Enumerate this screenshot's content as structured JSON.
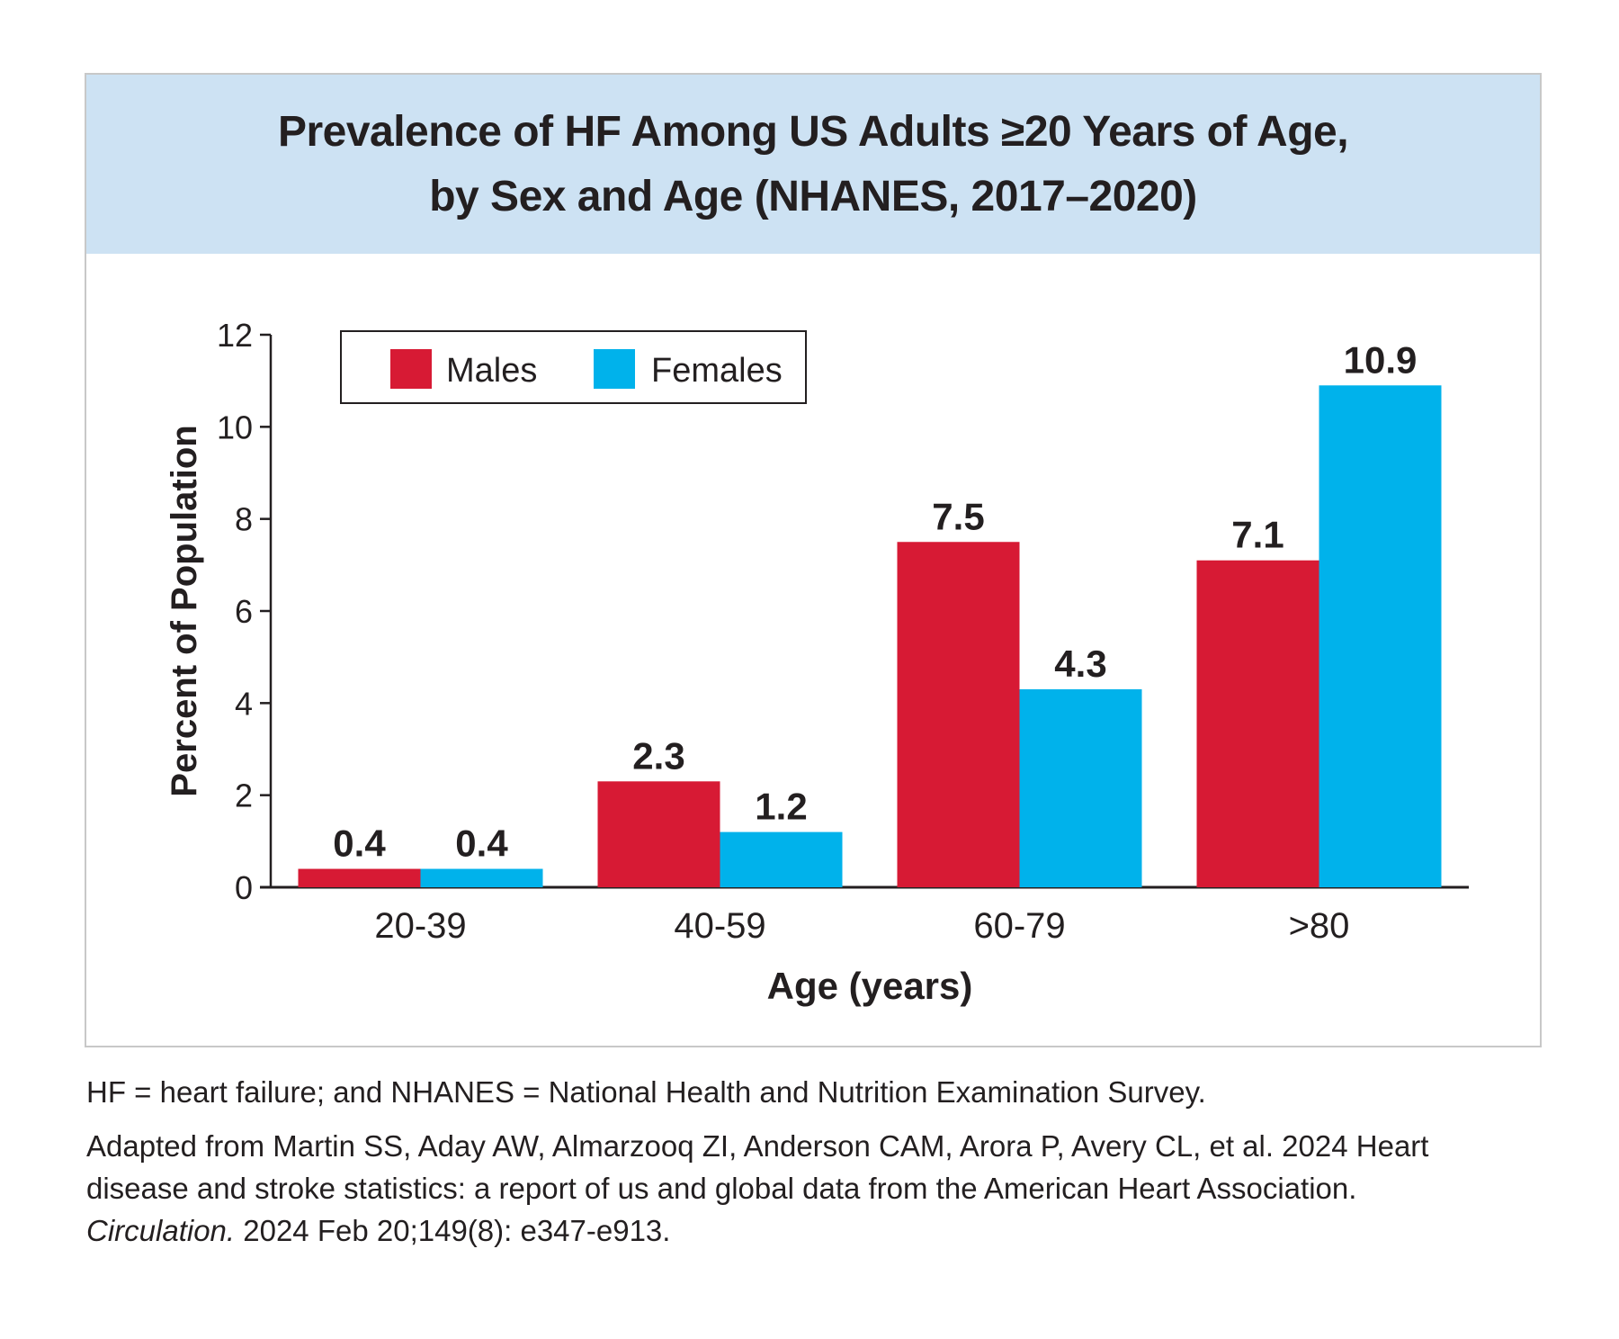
{
  "figure": {
    "title_line1": "Prevalence of HF Among US Adults ≥20 Years of Age,",
    "title_line2": "by Sex and Age (NHANES, 2017–2020)"
  },
  "chart_data": {
    "type": "bar",
    "categories": [
      "20-39",
      "40-59",
      "60-79",
      ">80"
    ],
    "series": [
      {
        "name": "Males",
        "values": [
          0.4,
          2.3,
          7.5,
          7.1
        ],
        "labels": [
          "0.4",
          "2.3",
          "7.5",
          "7.1"
        ],
        "color": "#d71a34"
      },
      {
        "name": "Females",
        "values": [
          0.4,
          1.2,
          4.3,
          10.9
        ],
        "labels": [
          "0.4",
          "1.2",
          "4.3",
          "10.9"
        ],
        "color": "#00b2eb"
      }
    ],
    "xlabel": "Age (years)",
    "ylabel": "Percent of Population",
    "ylim": [
      0,
      12
    ],
    "yticks": [
      "0",
      "2",
      "4",
      "6",
      "8",
      "10",
      "12"
    ],
    "ytick_values": [
      0,
      2,
      4,
      6,
      8,
      10,
      12
    ],
    "legend_placement": "top-left",
    "grid": false
  },
  "footnotes": {
    "abbreviations": "HF = heart failure; and NHANES = National Health and Nutrition Examination Survey.",
    "source_line1": "Adapted from Martin SS, Aday AW, Almarzooq ZI, Anderson CAM, Arora P, Avery CL, et al. 2024 Heart",
    "source_line2": "disease and stroke statistics: a report of us and global data from the American Heart Association.",
    "journal": "Circulation.",
    "citation": " 2024 Feb 20;149(8): e347-e913."
  }
}
